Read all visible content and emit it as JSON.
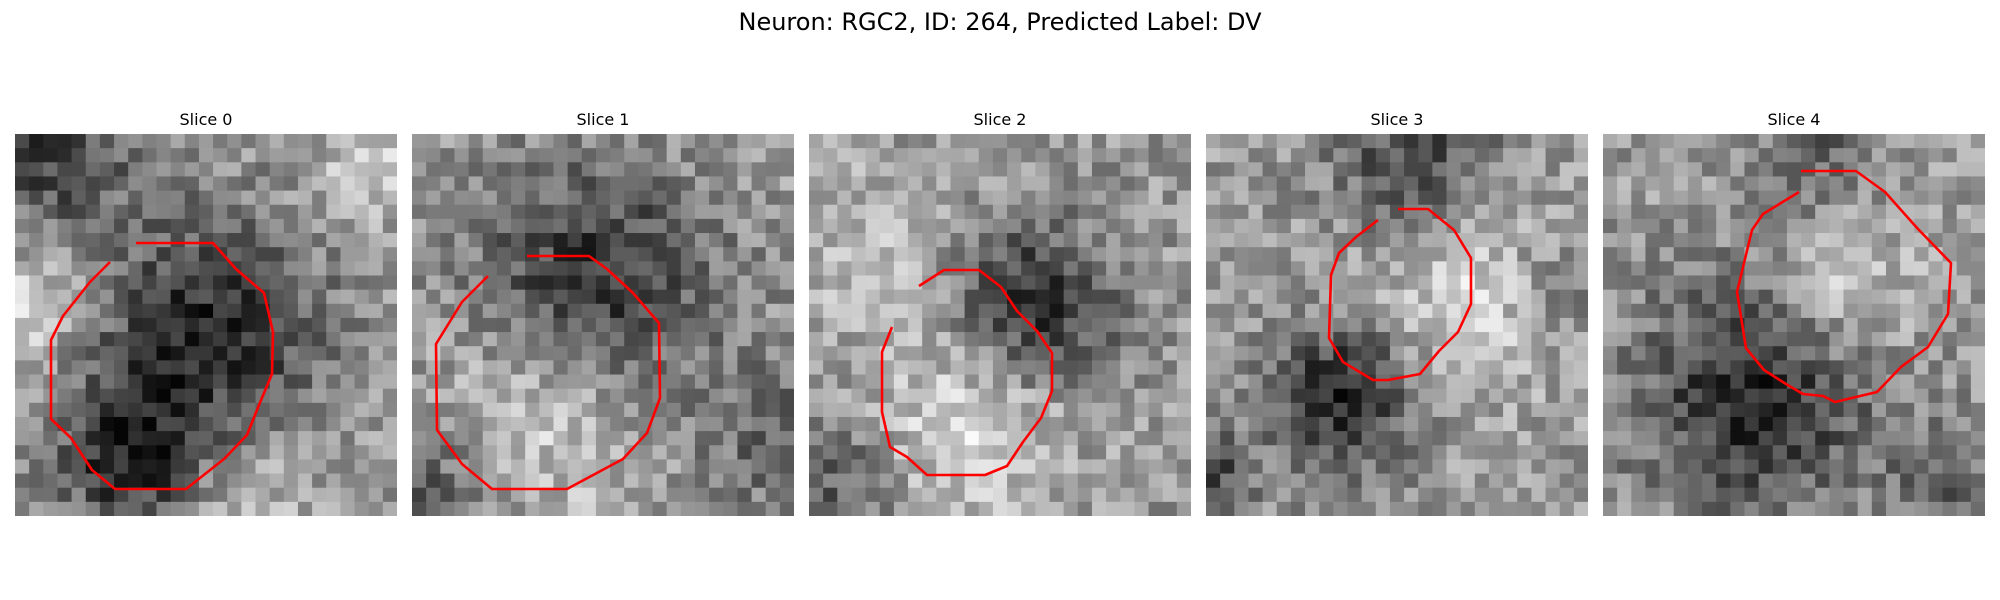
{
  "figure": {
    "title": "Neuron: RGC2, ID: 264, Predicted Label: DV",
    "outline_color": "#ff0000",
    "panels": [
      {
        "title": "Slice 0"
      },
      {
        "title": "Slice 1"
      },
      {
        "title": "Slice 2"
      },
      {
        "title": "Slice 3"
      },
      {
        "title": "Slice 4"
      }
    ]
  }
}
